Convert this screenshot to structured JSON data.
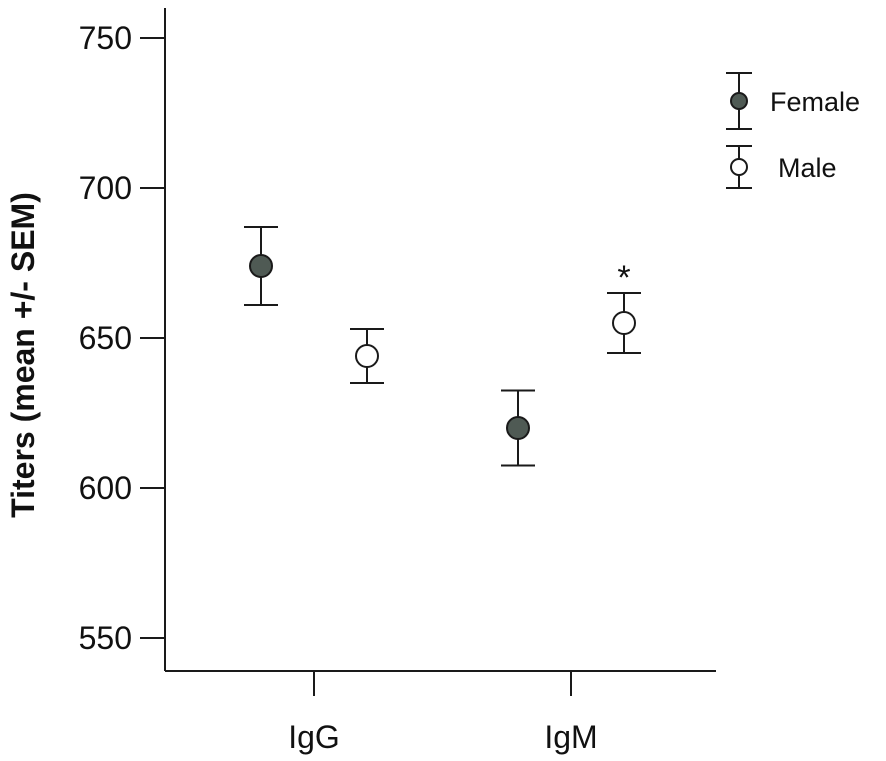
{
  "chart_data": {
    "type": "scatter",
    "ylabel": "Titers (mean +/- SEM)",
    "xlabel": "",
    "ylim": [
      540,
      757
    ],
    "yticks": [
      550,
      600,
      650,
      700,
      750
    ],
    "categories": [
      "IgG",
      "IgM"
    ],
    "series": [
      {
        "name": "Female",
        "fill": "#4f5a54",
        "values": [
          674,
          620
        ],
        "sem": [
          13,
          12.5
        ]
      },
      {
        "name": "Male",
        "fill": "#ffffff",
        "values": [
          644,
          655
        ],
        "sem": [
          9,
          10
        ]
      }
    ],
    "annotations": [
      {
        "text": "*",
        "category": "IgM",
        "series": "Male"
      }
    ],
    "legend_position": "top-right",
    "grid": false
  }
}
